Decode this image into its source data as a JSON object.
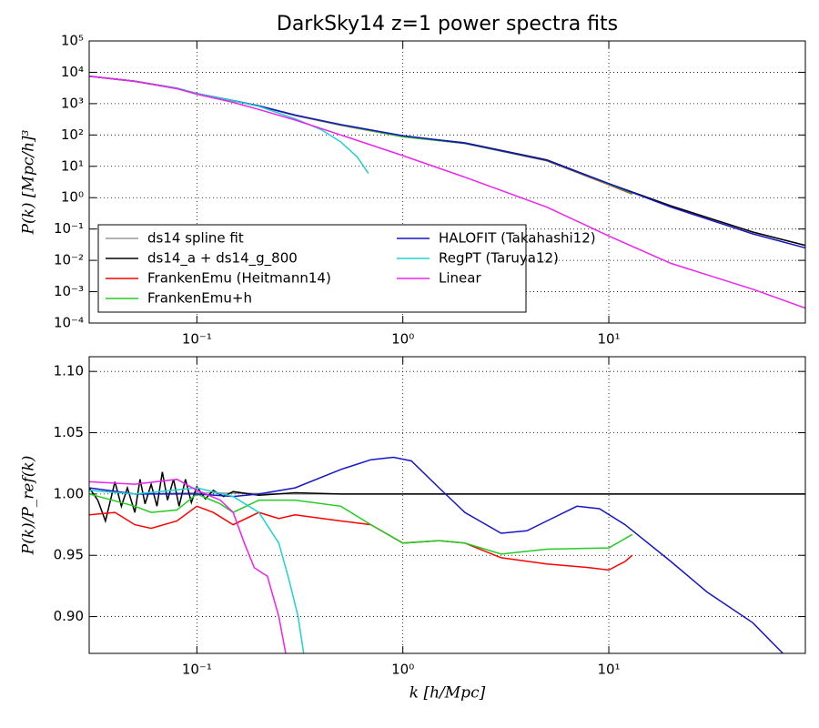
{
  "chart_data": [
    {
      "type": "line",
      "title": "DarkSky14 z=1 power spectra fits",
      "ylabel": "P(k) [Mpc/h]³",
      "xlog": true,
      "ylog": true,
      "grid": true,
      "legend": "lower left",
      "xlim": [
        0.03,
        90
      ],
      "ylim": [
        0.0001,
        100000
      ],
      "xticks": [
        {
          "value": 0.1,
          "label": "10⁻¹"
        },
        {
          "value": 1,
          "label": "10⁰"
        },
        {
          "value": 10,
          "label": "10¹"
        }
      ],
      "yticks": [
        {
          "value": 0.0001,
          "label": "10⁻⁴"
        },
        {
          "value": 0.001,
          "label": "10⁻³"
        },
        {
          "value": 0.01,
          "label": "10⁻²"
        },
        {
          "value": 0.1,
          "label": "10⁻¹"
        },
        {
          "value": 1,
          "label": "10⁰"
        },
        {
          "value": 10,
          "label": "10¹"
        },
        {
          "value": 100,
          "label": "10²"
        },
        {
          "value": 1000,
          "label": "10³"
        },
        {
          "value": 10000,
          "label": "10⁴"
        },
        {
          "value": 100000,
          "label": "10⁵"
        }
      ],
      "series": [
        {
          "name": "ds14 spline fit",
          "color": "#999999",
          "x": [
            0.03,
            0.05,
            0.08,
            0.1,
            0.15,
            0.2,
            0.3,
            0.5,
            1,
            2,
            5,
            10,
            20,
            50,
            90
          ],
          "values": [
            7500,
            5200,
            3100,
            2100,
            1250,
            850,
            430,
            210,
            92,
            56,
            16,
            2.8,
            0.55,
            0.08,
            0.03
          ]
        },
        {
          "name": "ds14_a + ds14_g_800",
          "color": "#000000",
          "x": [
            0.03,
            0.05,
            0.08,
            0.1,
            0.15,
            0.2,
            0.3,
            0.5,
            1,
            2,
            5,
            10,
            20,
            50,
            90
          ],
          "values": [
            7500,
            5200,
            3100,
            2100,
            1250,
            850,
            430,
            210,
            92,
            56,
            16,
            2.8,
            0.55,
            0.08,
            0.03
          ]
        },
        {
          "name": "FrankenEmu (Heitmann14)",
          "color": "#ff0000",
          "x": [
            0.03,
            0.05,
            0.08,
            0.1,
            0.15,
            0.2,
            0.3,
            0.5,
            1,
            2,
            5,
            10,
            13
          ],
          "values": [
            7400,
            5100,
            3050,
            2080,
            1230,
            840,
            420,
            205,
            88,
            54,
            15,
            2.6,
            1.3
          ]
        },
        {
          "name": "FrankenEmu+h",
          "color": "#22cc22",
          "x": [
            0.03,
            0.05,
            0.08,
            0.1,
            0.15,
            0.2,
            0.3,
            0.5,
            1,
            2,
            5,
            10,
            13
          ],
          "values": [
            7500,
            5150,
            3080,
            2100,
            1240,
            845,
            425,
            207,
            88,
            54,
            15.3,
            2.7,
            1.35
          ]
        },
        {
          "name": "HALOFIT (Takahashi12)",
          "color": "#1515c8",
          "x": [
            0.03,
            0.05,
            0.08,
            0.1,
            0.15,
            0.2,
            0.3,
            0.5,
            1,
            2,
            5,
            10,
            20,
            50,
            90
          ],
          "values": [
            7500,
            5200,
            3100,
            2100,
            1250,
            850,
            430,
            215,
            95,
            55,
            15.5,
            2.8,
            0.5,
            0.07,
            0.025
          ]
        },
        {
          "name": "RegPT (Taruya12)",
          "color": "#22d0d0",
          "x": [
            0.03,
            0.05,
            0.08,
            0.1,
            0.15,
            0.2,
            0.3,
            0.4,
            0.5,
            0.6,
            0.68
          ],
          "values": [
            7500,
            5200,
            3100,
            2100,
            1240,
            820,
            330,
            150,
            60,
            20,
            6
          ]
        },
        {
          "name": "Linear",
          "color": "#ee22ee",
          "x": [
            0.03,
            0.05,
            0.08,
            0.1,
            0.15,
            0.2,
            0.3,
            0.5,
            1,
            2,
            5,
            10,
            20,
            50,
            90
          ],
          "values": [
            7500,
            5200,
            3000,
            2000,
            1100,
            650,
            300,
            100,
            22,
            4.5,
            0.5,
            0.06,
            0.008,
            0.0012,
            0.0003
          ]
        }
      ]
    },
    {
      "type": "line",
      "xlabel": "k [h/Mpc]",
      "ylabel": "P(k)/P_ref(k)",
      "xlog": true,
      "ylog": false,
      "grid": true,
      "xlim": [
        0.03,
        90
      ],
      "ylim": [
        0.87,
        1.112
      ],
      "xticks": [
        {
          "value": 0.1,
          "label": "10⁻¹"
        },
        {
          "value": 1,
          "label": "10⁰"
        },
        {
          "value": 10,
          "label": "10¹"
        }
      ],
      "yticks": [
        {
          "value": 0.9,
          "label": "0.90"
        },
        0.95,
        {
          "value": 1,
          "label": "1.00"
        },
        1.05,
        {
          "value": 1.1,
          "label": "1.10"
        }
      ],
      "series": [
        {
          "color": "#999999",
          "x": [
            0.03,
            0.05,
            0.1,
            0.3,
            1,
            10,
            90
          ],
          "values": [
            1.003,
            1.0,
            1.001,
            1.0,
            1.0,
            1.0,
            1.0
          ]
        },
        {
          "color": "#000000",
          "x": [
            0.03,
            0.033,
            0.036,
            0.04,
            0.043,
            0.046,
            0.05,
            0.053,
            0.056,
            0.06,
            0.064,
            0.068,
            0.072,
            0.077,
            0.082,
            0.088,
            0.094,
            0.1,
            0.11,
            0.12,
            0.135,
            0.15,
            0.2,
            0.3,
            0.5,
            1,
            3,
            10,
            90
          ],
          "values": [
            1.005,
            0.995,
            0.978,
            1.01,
            0.99,
            1.005,
            0.985,
            1.012,
            0.992,
            1.008,
            0.99,
            1.018,
            0.995,
            1.012,
            0.99,
            1.012,
            0.993,
            1.006,
            0.996,
            1.003,
            0.998,
            1.002,
            0.999,
            1.001,
            1.0,
            1.0,
            1.0,
            1.0,
            1.0
          ]
        },
        {
          "color": "#ff0000",
          "x": [
            0.03,
            0.04,
            0.05,
            0.06,
            0.08,
            0.1,
            0.12,
            0.15,
            0.2,
            0.25,
            0.3,
            0.5,
            0.7,
            1,
            1.5,
            2,
            3,
            5,
            8,
            10,
            12,
            13
          ],
          "values": [
            0.983,
            0.985,
            0.975,
            0.972,
            0.978,
            0.99,
            0.985,
            0.975,
            0.985,
            0.98,
            0.983,
            0.978,
            0.975,
            0.96,
            0.962,
            0.96,
            0.948,
            0.943,
            0.94,
            0.938,
            0.945,
            0.95
          ]
        },
        {
          "color": "#22cc22",
          "x": [
            0.03,
            0.05,
            0.06,
            0.08,
            0.1,
            0.13,
            0.15,
            0.2,
            0.3,
            0.5,
            0.7,
            1,
            1.5,
            2,
            3,
            5,
            10,
            13
          ],
          "values": [
            1.0,
            0.99,
            0.985,
            0.987,
            1.0,
            0.992,
            0.985,
            0.995,
            0.995,
            0.99,
            0.975,
            0.96,
            0.962,
            0.96,
            0.951,
            0.955,
            0.956,
            0.967
          ]
        },
        {
          "color": "#1515c8",
          "x": [
            0.03,
            0.05,
            0.1,
            0.15,
            0.2,
            0.3,
            0.5,
            0.7,
            0.9,
            1.1,
            1.5,
            2,
            3,
            4,
            5,
            7,
            9,
            12,
            20,
            30,
            50,
            70
          ],
          "values": [
            1.005,
            1.0,
            1.0,
            0.998,
            1.0,
            1.005,
            1.02,
            1.028,
            1.03,
            1.027,
            1.005,
            0.985,
            0.968,
            0.97,
            0.978,
            0.99,
            0.988,
            0.975,
            0.945,
            0.92,
            0.895,
            0.87
          ]
        },
        {
          "color": "#22d0d0",
          "x": [
            0.03,
            0.05,
            0.1,
            0.15,
            0.2,
            0.25,
            0.28,
            0.31,
            0.33
          ],
          "values": [
            1.003,
            1.0,
            1.005,
            0.998,
            0.985,
            0.96,
            0.93,
            0.9,
            0.87
          ]
        },
        {
          "color": "#ee22ee",
          "x": [
            0.03,
            0.05,
            0.08,
            0.1,
            0.13,
            0.15,
            0.17,
            0.19,
            0.21,
            0.22,
            0.25,
            0.27
          ],
          "values": [
            1.01,
            1.008,
            1.012,
            1.003,
            0.995,
            0.985,
            0.96,
            0.94,
            0.935,
            0.933,
            0.9,
            0.87
          ]
        }
      ]
    }
  ]
}
